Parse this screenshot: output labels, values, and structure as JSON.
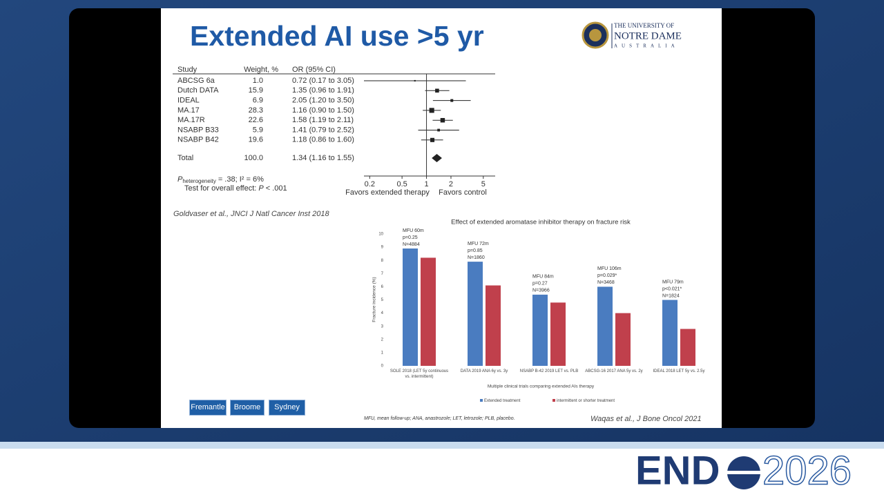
{
  "slide": {
    "title": "Extended AI use >5 yr",
    "logo": {
      "line1": "THE UNIVERSITY OF",
      "line2": "NOTRE DAME",
      "line3": "AUSTRALIA"
    },
    "citation_1": "Goldvaser et al., JNCI J Natl Cancer Inst 2018",
    "citation_2": "Waqas et al., J Bone Oncol 2021",
    "footnote": "MFU, mean follow-up; ANA, anastrozole; LET, letrozole; PLB, placebo.",
    "buttons": [
      "Fremantle",
      "Broome",
      "Sydney"
    ]
  },
  "event": {
    "name": "END",
    "year": "2026"
  },
  "chart_data": [
    {
      "type": "forest",
      "columns": [
        "Study",
        "Weight, %",
        "OR (95% CI)"
      ],
      "studies": [
        "ABCSG 6a",
        "Dutch DATA",
        "IDEAL",
        "MA.17",
        "MA.17R",
        "NSABP B33",
        "NSABP B42"
      ],
      "weights": [
        1.0,
        15.9,
        6.9,
        28.3,
        22.6,
        5.9,
        19.6
      ],
      "weight_labels": [
        "1.0",
        "15.9",
        "6.9",
        "28.3",
        "22.6",
        "5.9",
        "19.6"
      ],
      "values": [
        0.72,
        1.35,
        2.05,
        1.16,
        1.58,
        1.41,
        1.18
      ],
      "lower": [
        0.17,
        0.96,
        1.2,
        0.9,
        1.19,
        0.79,
        0.86
      ],
      "upper": [
        3.05,
        1.91,
        3.5,
        1.5,
        2.11,
        2.52,
        1.6
      ],
      "ci_labels": [
        "0.72 (0.17 to 3.05)",
        "1.35 (0.96 to 1.91)",
        "2.05 (1.20 to 3.50)",
        "1.16 (0.90 to 1.50)",
        "1.58 (1.19 to 2.11)",
        "1.41 (0.79 to 2.52)",
        "1.18 (0.86 to 1.60)"
      ],
      "total": {
        "label": "Total",
        "weight": 100,
        "weight_label": "100.0",
        "value": 1.34,
        "lower": 1.16,
        "upper": 1.55,
        "ci_label": "1.34 (1.16 to 1.55)"
      },
      "heterogeneity": {
        "symbol": "P",
        "subscript": "heterogeneity",
        "text": "= .38; I² = 6%"
      },
      "overall_effect": {
        "text": "Test for overall effect:",
        "symbol": "P",
        "rest": "< .001"
      },
      "xlim": [
        0.17,
        7
      ],
      "xticks": [
        0.2,
        0.5,
        1,
        2,
        5
      ],
      "log_x": true,
      "x_labels": [
        "Favors extended therapy",
        "Favors control"
      ],
      "color": "#222222"
    },
    {
      "type": "bar",
      "title": "Effect of extended aromatase inhibitor therapy on fracture risk",
      "x_label": "Multiple clinical trials comparing extended AIs therapy",
      "y_label": "Fracture incidence (%)",
      "categories": [
        "SOLE 2018 (LET 5y continuous vs. intermittent)",
        "DATA 2019 ANA 6y vs. 3y",
        "NSABP B-42 2019 LET vs. PLB",
        "ABCSG-16 2017 ANA 5y vs. 2y",
        "IDEAL 2018 LET 5y vs. 2.5y"
      ],
      "series": [
        {
          "name": "Extended treatment",
          "color": "#4a7cc0",
          "values": [
            8.9,
            7.9,
            5.4,
            6.0,
            5.0
          ]
        },
        {
          "name": "intermittent or shorter treatment",
          "color": "#c0404c",
          "values": [
            8.2,
            6.1,
            4.8,
            4.0,
            2.8
          ]
        }
      ],
      "annotations": [
        [
          "MFU 60m",
          "p=0.25",
          "N=4884"
        ],
        [
          "MFU 72m",
          "p=0.85",
          "N=1860"
        ],
        [
          "MFU 84m",
          "p=0.27",
          "N=3966"
        ],
        [
          "MFU 106m",
          "p=0.029*",
          "N=3468"
        ],
        [
          "MFU 79m",
          "p<0.021*",
          "N=1824"
        ]
      ],
      "ylim": [
        0,
        10
      ],
      "yticks": [
        0,
        1,
        2,
        3,
        4,
        5,
        6,
        7,
        8,
        9,
        10
      ],
      "grid": false,
      "legend": "bottom"
    }
  ]
}
